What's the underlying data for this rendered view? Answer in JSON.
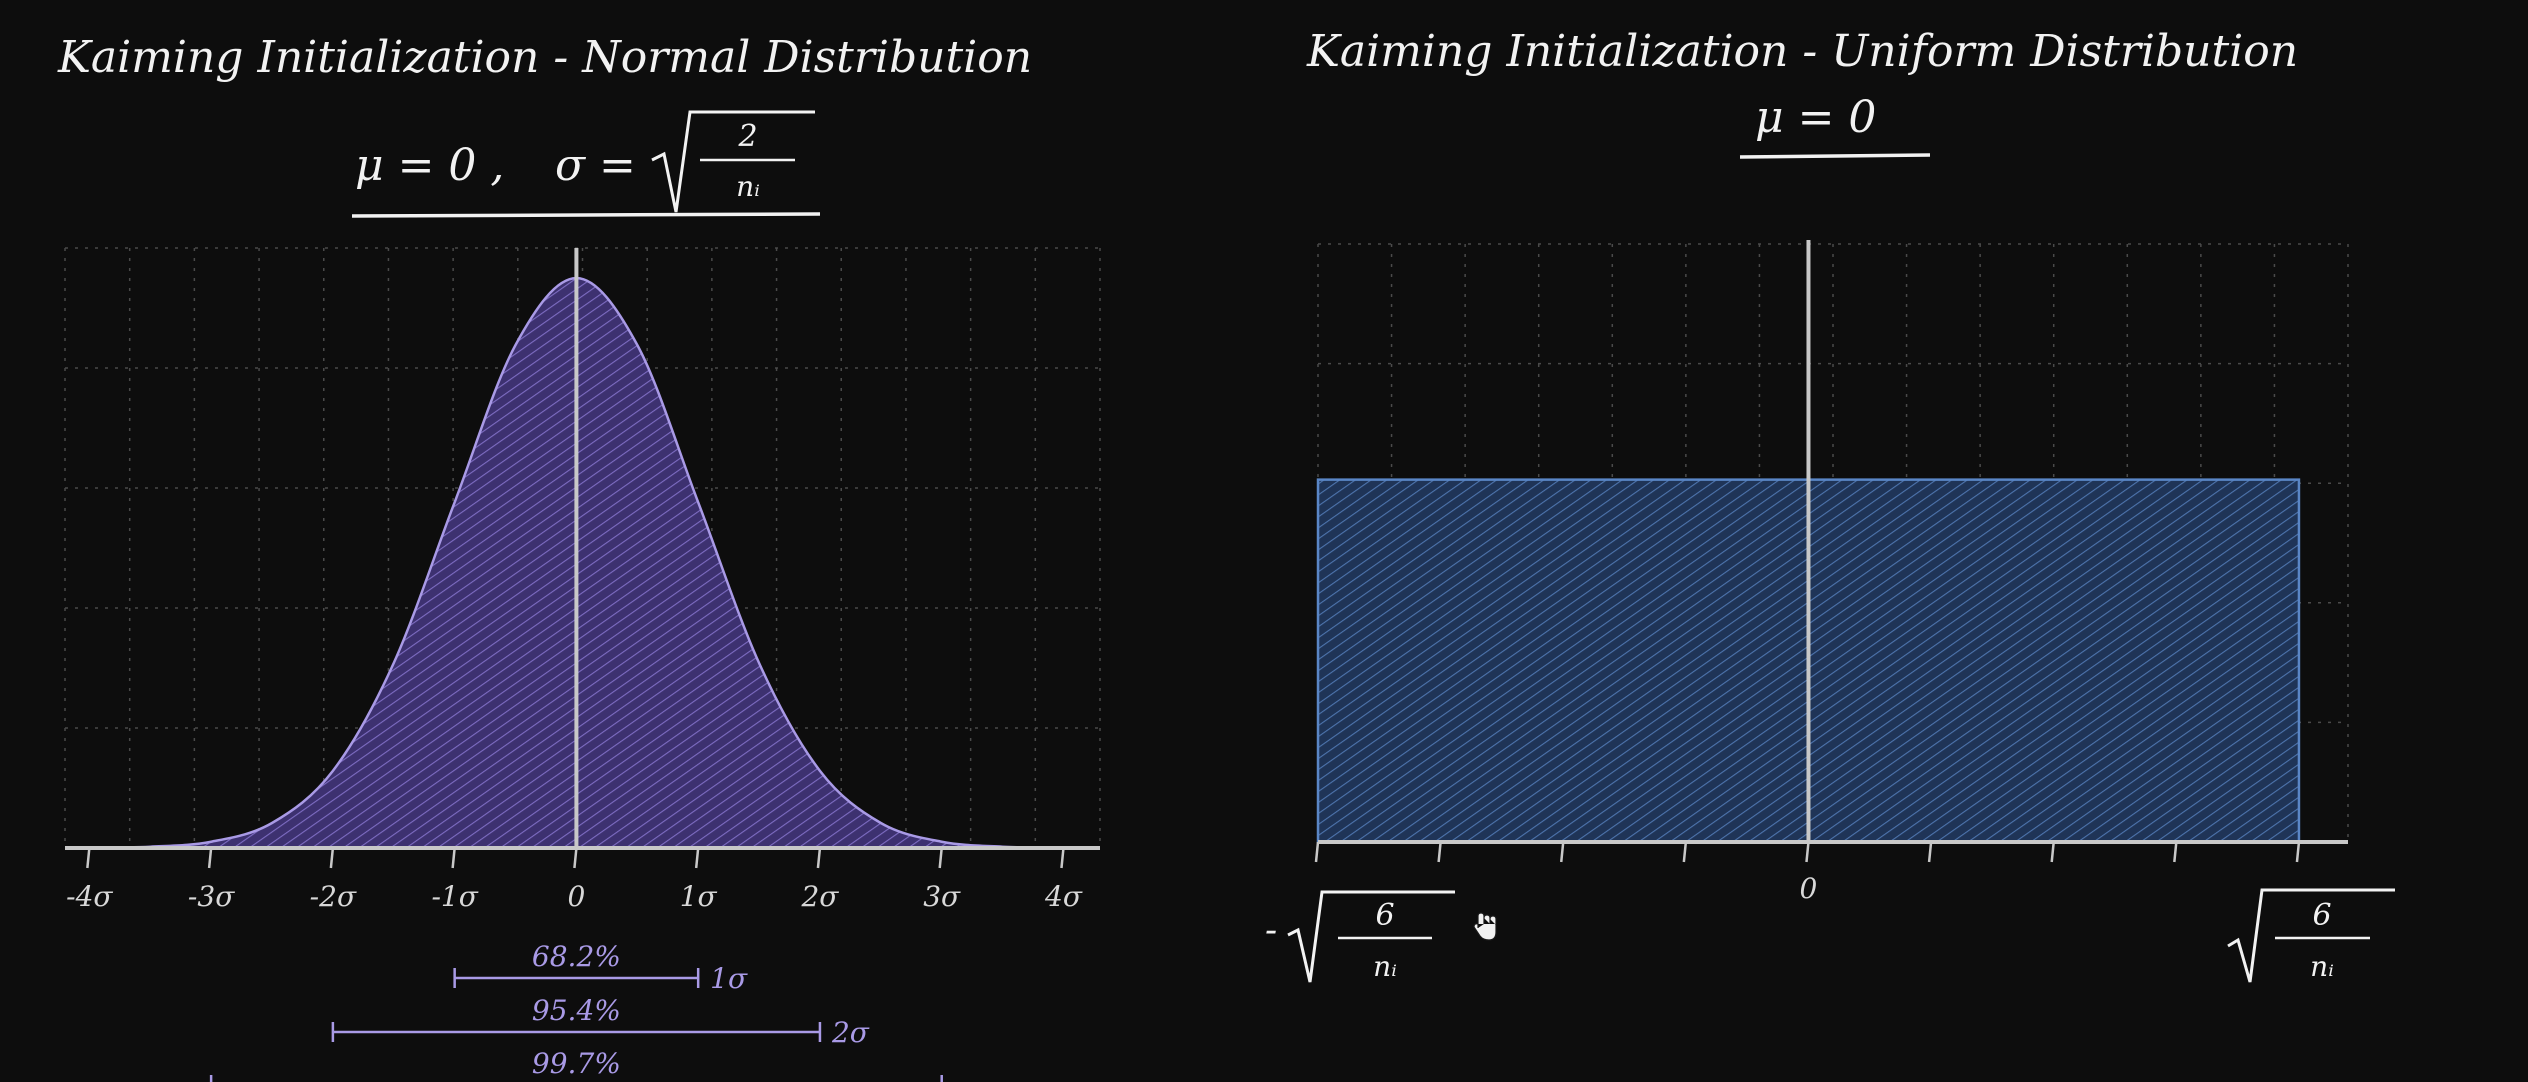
{
  "chart_data": [
    {
      "type": "area",
      "title": "Kaiming Initialization - Normal Distribution",
      "formula": {
        "mu_part": "μ = 0 ,",
        "sigma_part": "σ =",
        "numerator": "2",
        "denominator": "nᵢ"
      },
      "x": [
        -4,
        -3.5,
        -3,
        -2.5,
        -2,
        -1.5,
        -1,
        -0.5,
        0,
        0.5,
        1,
        1.5,
        2,
        2.5,
        3,
        3.5,
        4
      ],
      "y": [
        0.0001,
        0.0009,
        0.0044,
        0.0175,
        0.054,
        0.1295,
        0.242,
        0.3521,
        0.3989,
        0.3521,
        0.242,
        0.1295,
        0.054,
        0.0175,
        0.0044,
        0.0009,
        0.0001
      ],
      "xlim": [
        -4.2,
        4.3
      ],
      "ylim": [
        0,
        0.42
      ],
      "x_tick_labels": [
        {
          "value": -4,
          "label": "-4σ"
        },
        {
          "value": -3,
          "label": "-3σ"
        },
        {
          "value": -2,
          "label": "-2σ"
        },
        {
          "value": -1,
          "label": "-1σ"
        },
        {
          "value": 0,
          "label": "0"
        },
        {
          "value": 1,
          "label": "1σ"
        },
        {
          "value": 2,
          "label": "2σ"
        },
        {
          "value": 3,
          "label": "3σ"
        },
        {
          "value": 4,
          "label": "4σ"
        }
      ],
      "intervals": [
        {
          "from": -1,
          "to": 1,
          "percent": "68.2%",
          "end_label": "1σ"
        },
        {
          "from": -2,
          "to": 2,
          "percent": "95.4%",
          "end_label": "2σ"
        },
        {
          "from": -3,
          "to": 3,
          "percent": "99.7%",
          "end_label": ""
        }
      ],
      "grid": true,
      "fill_color": "#5b4a99",
      "line_color": "#a99ae6"
    },
    {
      "type": "area",
      "title": "Kaiming Initialization - Uniform Distribution",
      "formula": {
        "mu_part": "μ = 0"
      },
      "x": [
        -1,
        1
      ],
      "y": [
        1,
        1
      ],
      "xlim": [
        -1.0,
        1.1
      ],
      "ylim": [
        0,
        1.65
      ],
      "x_tick_labels": [
        {
          "value": 0,
          "label": "0"
        }
      ],
      "bound_labels": {
        "numerator": "6",
        "denominator": "nᵢ",
        "negative_sign": "-"
      },
      "grid": true,
      "fill_color": "#2e4a78",
      "line_color": "#5a86c6"
    }
  ]
}
